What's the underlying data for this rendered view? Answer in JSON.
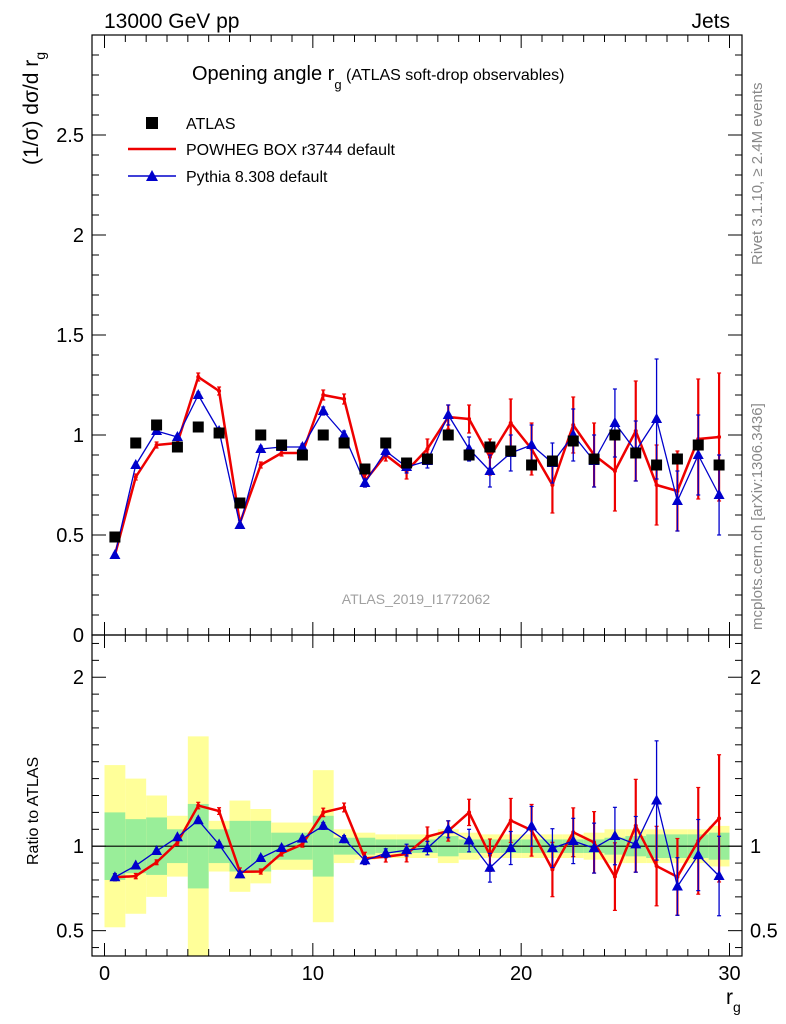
{
  "header": {
    "left": "13000 GeV pp",
    "right": "Jets"
  },
  "side_labels": {
    "rivet": "Rivet 3.1.10, ≥ 2.4M events",
    "mcplots": "mcplots.cern.ch [arXiv:1306.3436]"
  },
  "chart_data": {
    "type": "scatter",
    "title": "Opening angle r",
    "title_sub": "g",
    "title_extra": " (ATLAS soft-drop observables)",
    "xlabel": "r",
    "xlabel_sub": "g",
    "ylabel": "(1/σ) dσ/d r",
    "ylabel_sub": "g",
    "ratio_ylabel": "Ratio to ATLAS",
    "analysis_label": "ATLAS_2019_I1772062",
    "xlim": [
      -0.6,
      30.6
    ],
    "ylim": [
      0,
      3.0
    ],
    "ratio_ylim": [
      0.35,
      2.25
    ],
    "x_ticks": [
      "0",
      "10",
      "20",
      "30"
    ],
    "y_ticks": [
      "0",
      "0.5",
      "1",
      "1.5",
      "2",
      "2.5"
    ],
    "ratio_ticks": [
      "0.5",
      "1",
      "2"
    ],
    "legend": [
      "ATLAS",
      "POWHEG BOX r3744 default",
      "Pythia 8.308 default"
    ],
    "bins": [
      0,
      1,
      2,
      3,
      4,
      5,
      6,
      7,
      8,
      9,
      10,
      11,
      12,
      13,
      14,
      15,
      16,
      17,
      18,
      19,
      20,
      21,
      22,
      23,
      24,
      25,
      26,
      27,
      28,
      29,
      30
    ],
    "series": [
      {
        "name": "ATLAS",
        "color": "#000000",
        "values": [
          0.49,
          0.96,
          1.05,
          0.94,
          1.04,
          1.01,
          0.66,
          1.0,
          0.95,
          0.9,
          1.0,
          0.96,
          0.83,
          0.96,
          0.86,
          0.88,
          1.0,
          0.9,
          0.94,
          0.92,
          0.85,
          0.87,
          0.97,
          0.88,
          1.0,
          0.91,
          0.85,
          0.88,
          0.95,
          0.85
        ],
        "band_inner": [
          0.2,
          0.16,
          0.17,
          0.1,
          0.25,
          0.1,
          0.15,
          0.15,
          0.08,
          0.08,
          0.18,
          0.05,
          0.05,
          0.04,
          0.04,
          0.04,
          0.06,
          0.04,
          0.04,
          0.04,
          0.04,
          0.04,
          0.04,
          0.04,
          0.05,
          0.06,
          0.07,
          0.07,
          0.07,
          0.08
        ],
        "band_outer": [
          0.48,
          0.4,
          0.3,
          0.18,
          0.65,
          0.15,
          0.27,
          0.22,
          0.14,
          0.14,
          0.45,
          0.1,
          0.08,
          0.07,
          0.07,
          0.07,
          0.1,
          0.08,
          0.07,
          0.07,
          0.07,
          0.07,
          0.07,
          0.08,
          0.1,
          0.1,
          0.1,
          0.1,
          0.1,
          0.12
        ]
      },
      {
        "name": "POWHEG BOX r3744 default",
        "color": "#ee0000",
        "values": [
          0.4,
          0.79,
          0.95,
          0.96,
          1.29,
          1.22,
          0.56,
          0.85,
          0.91,
          0.91,
          1.2,
          1.18,
          0.77,
          0.9,
          0.82,
          0.93,
          1.09,
          1.08,
          0.89,
          1.06,
          0.93,
          0.75,
          1.05,
          0.9,
          0.82,
          1.02,
          0.75,
          0.72,
          0.98,
          0.99
        ],
        "errors": [
          0.01,
          0.015,
          0.015,
          0.015,
          0.02,
          0.02,
          0.015,
          0.015,
          0.015,
          0.015,
          0.025,
          0.025,
          0.03,
          0.03,
          0.04,
          0.05,
          0.06,
          0.07,
          0.09,
          0.12,
          0.13,
          0.14,
          0.14,
          0.16,
          0.2,
          0.25,
          0.2,
          0.2,
          0.3,
          0.32
        ]
      },
      {
        "name": "Pythia 8.308 default",
        "color": "#0000cc",
        "values": [
          0.4,
          0.85,
          1.02,
          0.99,
          1.2,
          1.02,
          0.55,
          0.93,
          0.94,
          0.94,
          1.12,
          1.0,
          0.76,
          0.92,
          0.84,
          0.87,
          1.1,
          0.93,
          0.82,
          0.91,
          0.95,
          0.86,
          1.0,
          0.87,
          1.06,
          0.92,
          1.08,
          0.67,
          0.9,
          0.7
        ],
        "errors": [
          0.01,
          0.01,
          0.01,
          0.01,
          0.015,
          0.015,
          0.01,
          0.015,
          0.015,
          0.015,
          0.02,
          0.02,
          0.02,
          0.025,
          0.03,
          0.035,
          0.05,
          0.06,
          0.08,
          0.09,
          0.1,
          0.1,
          0.13,
          0.13,
          0.17,
          0.15,
          0.3,
          0.15,
          0.2,
          0.2
        ]
      }
    ]
  }
}
